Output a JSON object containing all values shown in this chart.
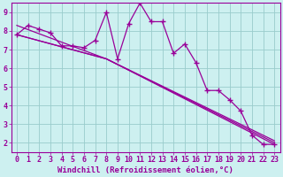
{
  "title": "",
  "xlabel": "Windchill (Refroidissement éolien,°C)",
  "bg_color": "#cdf0f0",
  "line_color": "#990099",
  "grid_color": "#99cccc",
  "spine_color": "#990099",
  "xlim": [
    -0.5,
    23.5
  ],
  "ylim": [
    1.5,
    9.5
  ],
  "xticks": [
    0,
    1,
    2,
    3,
    4,
    5,
    6,
    7,
    8,
    9,
    10,
    11,
    12,
    13,
    14,
    15,
    16,
    17,
    18,
    19,
    20,
    21,
    22,
    23
  ],
  "yticks": [
    2,
    3,
    4,
    5,
    6,
    7,
    8,
    9
  ],
  "series1_x": [
    0,
    1,
    2,
    3,
    4,
    5,
    6,
    7,
    8,
    9,
    10,
    11,
    12,
    13,
    14,
    15,
    16,
    17,
    18,
    19,
    20,
    21,
    22,
    23
  ],
  "series1_y": [
    7.8,
    8.3,
    8.1,
    7.9,
    7.2,
    7.2,
    7.1,
    7.5,
    9.0,
    6.5,
    8.4,
    9.5,
    8.5,
    8.5,
    6.8,
    7.3,
    6.3,
    4.8,
    4.8,
    4.3,
    3.7,
    2.4,
    1.9,
    1.9
  ],
  "series2_x": [
    0,
    8,
    23
  ],
  "series2_y": [
    7.8,
    6.5,
    2.0
  ],
  "series3_x": [
    0,
    8,
    23
  ],
  "series3_y": [
    8.3,
    6.5,
    2.1
  ],
  "series4_x": [
    0,
    8,
    23
  ],
  "series4_y": [
    7.8,
    6.5,
    1.9
  ],
  "marker": "+",
  "markersize": 4,
  "linewidth": 0.9,
  "xlabel_fontsize": 6.5,
  "tick_fontsize": 6
}
